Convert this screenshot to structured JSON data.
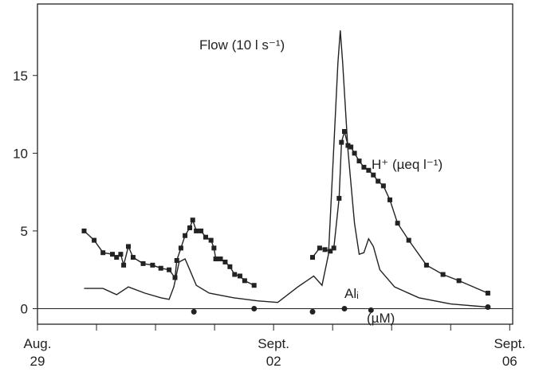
{
  "chart_data": {
    "type": "line",
    "xlim": [
      0,
      8.05
    ],
    "ylim": [
      -1,
      19.6
    ],
    "xticks": [
      {
        "value": 0,
        "label": "Aug. 29"
      },
      {
        "value": 4,
        "label": "Sept. 02"
      },
      {
        "value": 8,
        "label": "Sept. 06"
      }
    ],
    "xminor_ticks": [
      1,
      2,
      3,
      5,
      6,
      7
    ],
    "yticks": [
      0,
      5,
      10,
      15
    ],
    "series": [
      {
        "name": "Flow (10 l s⁻¹)",
        "color": "#222",
        "marker": "none",
        "x": [
          0.79,
          1.11,
          1.34,
          1.54,
          1.82,
          2.09,
          2.23,
          2.31,
          2.4,
          2.5,
          2.58,
          2.69,
          2.91,
          3.32,
          3.73,
          4.07,
          4.41,
          4.68,
          4.82,
          4.93,
          5.01,
          5.09,
          5.13,
          5.17,
          5.26,
          5.37,
          5.45,
          5.53,
          5.61,
          5.69,
          5.8,
          6.05,
          6.46,
          7.0,
          7.63
        ],
        "values": [
          1.3,
          1.3,
          0.9,
          1.4,
          1.0,
          0.7,
          0.6,
          1.4,
          3.0,
          3.2,
          2.5,
          1.5,
          1.0,
          0.7,
          0.5,
          0.4,
          1.4,
          2.1,
          1.5,
          3.5,
          9.6,
          15.8,
          17.9,
          15.8,
          10.2,
          5.5,
          3.5,
          3.6,
          4.5,
          4.0,
          2.5,
          1.4,
          0.7,
          0.3,
          0.1
        ]
      },
      {
        "name": "H⁺  (µeq l⁻¹)",
        "color": "#222",
        "marker": "square",
        "x": [
          0.79,
          0.96,
          1.11,
          1.27,
          1.34,
          1.41,
          1.46,
          1.54,
          1.62,
          1.79,
          1.95,
          2.09,
          2.23,
          2.33,
          2.36,
          2.43,
          2.5,
          2.58,
          2.63,
          2.69,
          2.77,
          2.85,
          2.94,
          2.99,
          3.02,
          3.1,
          3.18,
          3.26,
          3.34,
          3.43,
          3.51,
          3.67,
          null,
          4.66,
          4.78,
          4.87,
          4.96,
          5.02,
          5.11,
          5.15,
          5.2,
          5.26,
          5.31,
          5.37,
          5.45,
          5.53,
          5.61,
          5.69,
          5.77,
          5.86,
          5.97,
          6.1,
          6.29,
          6.59,
          6.87,
          7.14,
          7.63
        ],
        "values": [
          5.0,
          4.4,
          3.6,
          3.5,
          3.3,
          3.5,
          2.8,
          4.0,
          3.3,
          2.9,
          2.8,
          2.6,
          2.5,
          2.0,
          3.1,
          3.9,
          4.7,
          5.2,
          5.7,
          5.0,
          5.0,
          4.6,
          4.4,
          3.9,
          3.2,
          3.2,
          3.0,
          2.7,
          2.2,
          2.1,
          1.8,
          1.5,
          null,
          3.3,
          3.9,
          3.8,
          3.7,
          3.9,
          7.1,
          10.7,
          11.4,
          10.5,
          10.4,
          10.0,
          9.5,
          9.1,
          8.9,
          8.6,
          8.2,
          7.9,
          7.0,
          5.5,
          4.4,
          2.8,
          2.2,
          1.8,
          1.0
        ]
      },
      {
        "name": "Alᵢ",
        "color": "#222",
        "marker": "circle",
        "x": [
          2.65,
          3.67,
          4.66,
          5.2,
          5.65,
          7.63
        ],
        "values": [
          -0.2,
          0,
          -0.2,
          0,
          -0.1,
          0.1
        ]
      }
    ],
    "annotations": [
      "(µM)"
    ]
  }
}
